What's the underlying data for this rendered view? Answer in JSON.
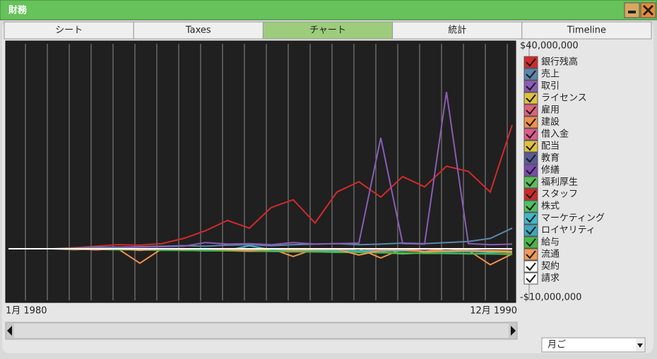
{
  "window": {
    "title": "財務"
  },
  "tabs": [
    "シート",
    "Taxes",
    "チャート",
    "統計",
    "Timeline"
  ],
  "active_tab": 2,
  "chart_data": {
    "type": "line",
    "categories": [
      "1月 1980",
      null,
      null,
      null,
      null,
      null,
      null,
      null,
      null,
      null,
      null,
      null,
      null,
      null,
      null,
      null,
      null,
      null,
      null,
      null,
      null,
      null,
      null,
      "12月 1990"
    ],
    "ylim": [
      -10000000,
      40000000
    ],
    "yticks": [
      {
        "value": 40000000,
        "label": "$40,000,000"
      },
      {
        "value": -10000000,
        "label": "-$10,000,000"
      }
    ],
    "grid": true,
    "series": [
      {
        "name": "銀行残高",
        "color": "#d42a2a",
        "values": [
          0,
          0,
          0,
          200000,
          500000,
          800000,
          700000,
          1000000,
          2000000,
          3500000,
          5500000,
          4000000,
          8000000,
          9500000,
          5000000,
          11000000,
          13000000,
          10000000,
          14000000,
          12000000,
          16000000,
          15000000,
          11000000,
          24000000
        ]
      },
      {
        "name": "売上",
        "color": "#5b86ad",
        "values": [
          0,
          0,
          0,
          100000,
          300000,
          300000,
          400000,
          500000,
          600000,
          500000,
          700000,
          800000,
          600000,
          800000,
          900000,
          1000000,
          800000,
          900000,
          1100000,
          1000000,
          1200000,
          1400000,
          2000000,
          4000000
        ]
      },
      {
        "name": "取引",
        "color": "#8a5cb8",
        "values": [
          0,
          0,
          0,
          0,
          100000,
          200000,
          300000,
          400000,
          500000,
          1200000,
          900000,
          1000000,
          800000,
          1200000,
          900000,
          1000000,
          1100000,
          21500000,
          1000000,
          900000,
          30400000,
          1000000,
          800000,
          900000
        ]
      },
      {
        "name": "ライセンス",
        "color": "#e0c040",
        "values": [
          0,
          0,
          0,
          0,
          0,
          -100000,
          -200000,
          -100000,
          -200000,
          -300000,
          -200000,
          -300000,
          -200000,
          -300000,
          -400000,
          -300000,
          -400000,
          -300000,
          -400000,
          -500000,
          -400000,
          -500000,
          -400000,
          -500000
        ]
      },
      {
        "name": "雇用",
        "color": "#e0607a",
        "values": [
          0,
          0,
          0,
          -200000,
          0,
          -100000,
          0,
          -100000,
          0,
          -100000,
          0,
          -100000,
          0,
          -200000,
          0,
          -100000,
          0,
          -200000,
          0,
          -100000,
          0,
          -200000,
          0,
          -100000
        ]
      },
      {
        "name": "建設",
        "color": "#f0904a",
        "values": [
          0,
          0,
          0,
          0,
          0,
          0,
          -2800000,
          0,
          -300000,
          0,
          0,
          -200000,
          0,
          -1500000,
          0,
          -400000,
          0,
          -1800000,
          0,
          -500000,
          0,
          -300000,
          -3100000,
          -1000000
        ]
      },
      {
        "name": "借入金",
        "color": "#e05a8a",
        "values": [
          0,
          0,
          0,
          0,
          0,
          0,
          0,
          0,
          0,
          0,
          0,
          0,
          0,
          0,
          0,
          0,
          0,
          0,
          0,
          0,
          0,
          0,
          0,
          0
        ]
      },
      {
        "name": "配当",
        "color": "#e0c040",
        "values": [
          0,
          0,
          0,
          0,
          0,
          0,
          0,
          0,
          0,
          0,
          0,
          0,
          0,
          0,
          0,
          0,
          0,
          0,
          0,
          0,
          0,
          0,
          0,
          0
        ]
      },
      {
        "name": "教育",
        "color": "#5a5a9a",
        "values": [
          0,
          0,
          0,
          0,
          0,
          0,
          0,
          0,
          0,
          0,
          0,
          0,
          0,
          0,
          0,
          0,
          0,
          0,
          0,
          0,
          0,
          0,
          0,
          0
        ]
      },
      {
        "name": "修繕",
        "color": "#7a4ab0",
        "values": [
          0,
          0,
          0,
          0,
          0,
          0,
          0,
          0,
          0,
          0,
          0,
          0,
          0,
          0,
          0,
          0,
          0,
          0,
          0,
          0,
          0,
          0,
          0,
          0
        ]
      },
      {
        "name": "福利厚生",
        "color": "#58c058",
        "values": [
          0,
          0,
          0,
          0,
          -100000,
          -100000,
          -200000,
          -200000,
          -300000,
          -300000,
          -400000,
          -400000,
          -500000,
          -500000,
          -600000,
          -600000,
          -700000,
          -700000,
          -1000000,
          -800000,
          -900000,
          -900000,
          -1000000,
          -1000000
        ]
      },
      {
        "name": "スタッフ",
        "color": "#d02828",
        "values": [
          0,
          0,
          0,
          0,
          0,
          0,
          0,
          0,
          0,
          0,
          0,
          0,
          0,
          0,
          0,
          0,
          0,
          0,
          0,
          0,
          0,
          0,
          0,
          0
        ]
      },
      {
        "name": "株式",
        "color": "#50c060",
        "values": [
          0,
          0,
          0,
          0,
          0,
          0,
          0,
          0,
          0,
          0,
          0,
          0,
          0,
          0,
          0,
          0,
          0,
          0,
          0,
          0,
          0,
          0,
          0,
          0
        ]
      },
      {
        "name": "マーケティング",
        "color": "#40b8c8",
        "values": [
          0,
          0,
          0,
          0,
          -100000,
          -200000,
          -100000,
          -200000,
          -300000,
          -200000,
          -300000,
          600000,
          -200000,
          -300000,
          -400000,
          -300000,
          -400000,
          -500000,
          -400000,
          -500000,
          -600000,
          -500000,
          -700000,
          -600000
        ]
      },
      {
        "name": "ロイヤリティ",
        "color": "#3aa8c0",
        "values": [
          0,
          0,
          0,
          0,
          0,
          0,
          0,
          0,
          0,
          0,
          0,
          0,
          0,
          0,
          0,
          0,
          0,
          0,
          0,
          0,
          0,
          0,
          0,
          0
        ]
      },
      {
        "name": "給与",
        "color": "#48b848",
        "values": [
          0,
          0,
          0,
          -100000,
          -100000,
          -200000,
          -200000,
          -300000,
          -300000,
          -400000,
          -400000,
          -500000,
          -500000,
          -600000,
          -600000,
          -700000,
          -700000,
          -800000,
          -800000,
          -900000,
          -900000,
          -1000000,
          -1000000,
          -1100000
        ]
      },
      {
        "name": "流通",
        "color": "#f09a58",
        "values": [
          0,
          0,
          0,
          0,
          -200000,
          0,
          -300000,
          0,
          -100000,
          0,
          -200000,
          -400000,
          0,
          -300000,
          -200000,
          -100000,
          -1200000,
          -300000,
          -200000,
          -600000,
          -400000,
          -300000,
          -500000,
          -700000
        ]
      },
      {
        "name": "契約",
        "color": "#ffffff",
        "values": [
          0,
          0,
          0,
          0,
          0,
          0,
          0,
          0,
          0,
          0,
          0,
          0,
          0,
          0,
          0,
          0,
          0,
          0,
          0,
          0,
          0,
          0,
          0,
          0
        ]
      },
      {
        "name": "請求",
        "color": "#ffffff",
        "values": [
          0,
          0,
          0,
          0,
          0,
          0,
          0,
          0,
          0,
          0,
          0,
          0,
          0,
          0,
          0,
          0,
          0,
          0,
          0,
          0,
          0,
          0,
          0,
          0
        ]
      }
    ]
  },
  "period_select": "月ご"
}
